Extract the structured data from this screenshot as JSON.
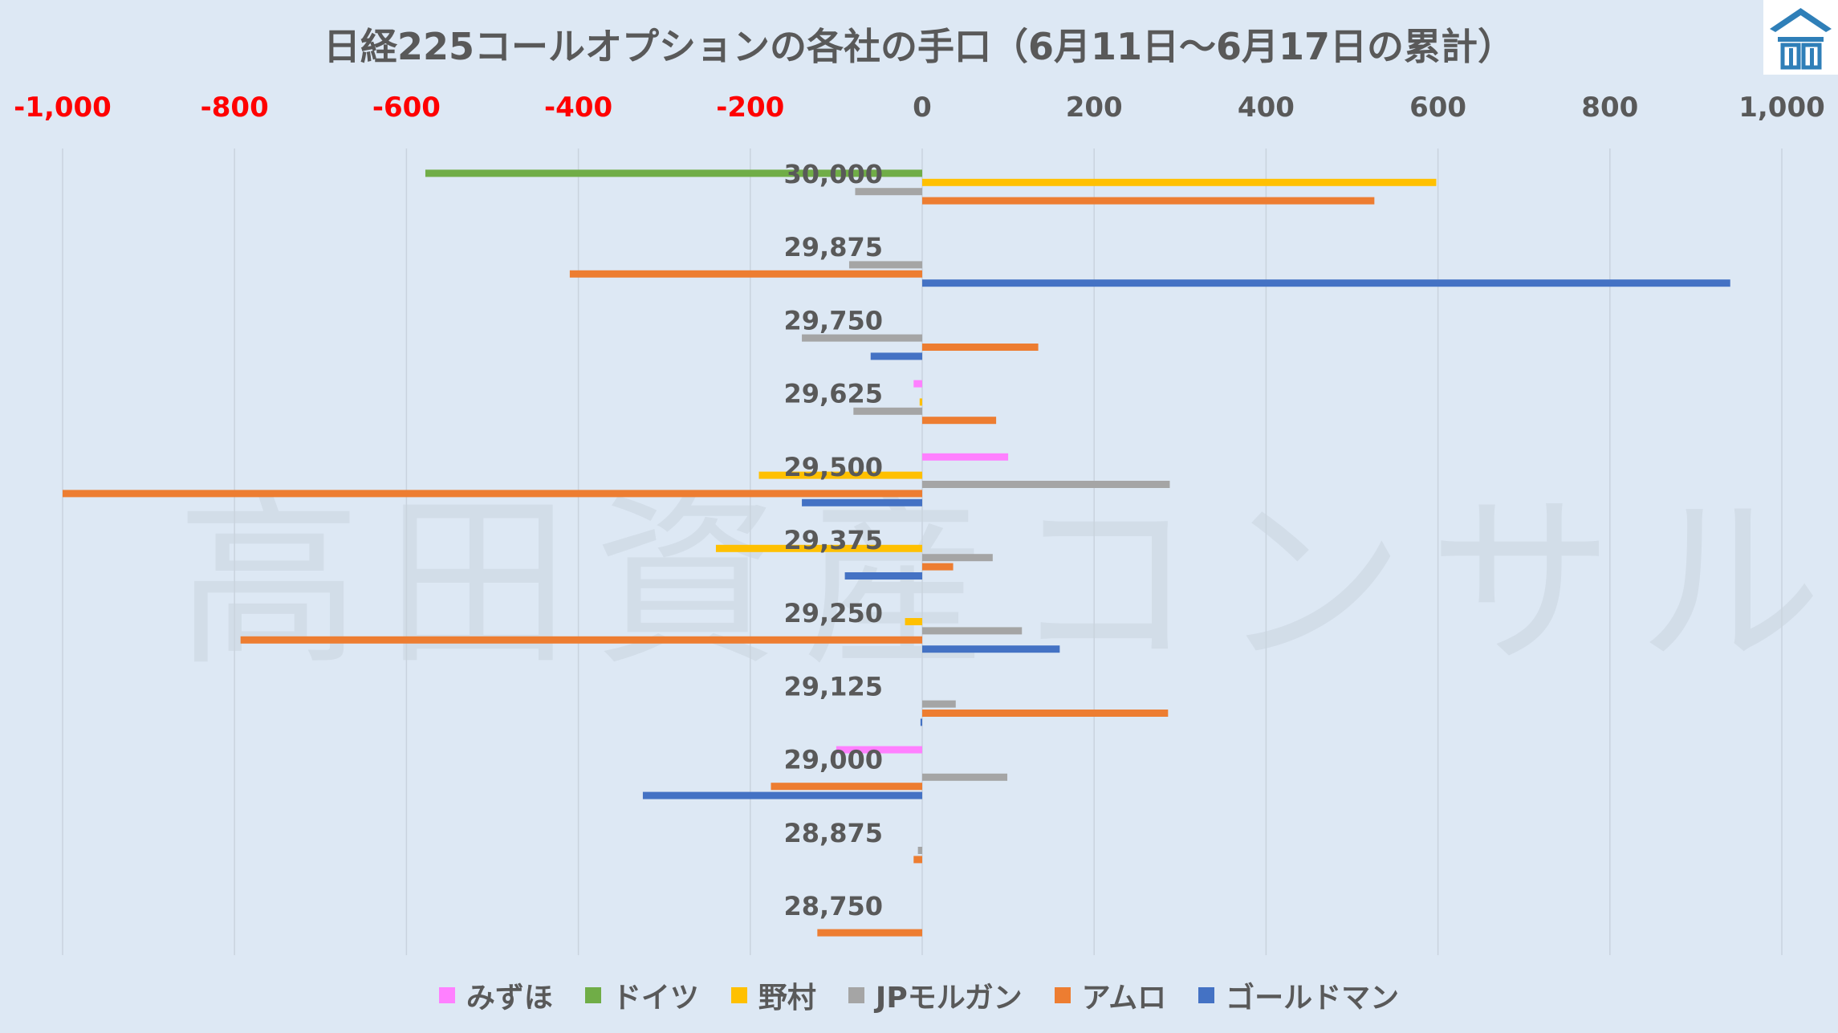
{
  "watermark": "高田資産コンサル",
  "chart_data": {
    "type": "bar",
    "orientation": "horizontal",
    "title": "日経225コールオプションの各社の手口（6月11日～6月17日の累計）",
    "xlim": [
      -1000,
      1000
    ],
    "x_ticks": [
      {
        "value": -1000,
        "label": "-1,000"
      },
      {
        "value": -800,
        "label": "-800"
      },
      {
        "value": -600,
        "label": "-600"
      },
      {
        "value": -400,
        "label": "-400"
      },
      {
        "value": -200,
        "label": "-200"
      },
      {
        "value": 0,
        "label": "0"
      },
      {
        "value": 200,
        "label": "200"
      },
      {
        "value": 400,
        "label": "400"
      },
      {
        "value": 600,
        "label": "600"
      },
      {
        "value": 800,
        "label": "800"
      },
      {
        "value": 1000,
        "label": "1,000"
      }
    ],
    "negative_tick_color": "#ff0000",
    "positive_tick_color": "#595959",
    "gridlines": "vertical",
    "legend_position": "bottom",
    "categories": [
      "30,000",
      "29,875",
      "29,750",
      "29,625",
      "29,500",
      "29,375",
      "29,250",
      "29,125",
      "29,000",
      "28,875",
      "28,750"
    ],
    "series": [
      {
        "name": "みずほ",
        "color": "#ff80ff",
        "values": [
          0,
          0,
          0,
          -10,
          100,
          0,
          0,
          0,
          -100,
          0,
          0
        ]
      },
      {
        "name": "ドイツ",
        "color": "#70ad47",
        "values": [
          -578,
          0,
          0,
          0,
          0,
          0,
          0,
          0,
          0,
          0,
          0
        ]
      },
      {
        "name": "野村",
        "color": "#ffc000",
        "values": [
          598,
          0,
          0,
          -3,
          -190,
          -240,
          -20,
          0,
          0,
          0,
          0
        ]
      },
      {
        "name": "JPモルガン",
        "color": "#a5a5a5",
        "values": [
          -78,
          -85,
          -140,
          -80,
          288,
          82,
          116,
          39,
          99,
          -5,
          0
        ]
      },
      {
        "name": "アムロ",
        "color": "#ed7d31",
        "values": [
          526,
          -410,
          135,
          86,
          -1000,
          36,
          -793,
          286,
          -176,
          -10,
          -122
        ]
      },
      {
        "name": "ゴールドマン",
        "color": "#4472c4",
        "values": [
          0,
          940,
          -60,
          0,
          -140,
          -90,
          160,
          -2,
          -325,
          0,
          0
        ]
      }
    ]
  }
}
